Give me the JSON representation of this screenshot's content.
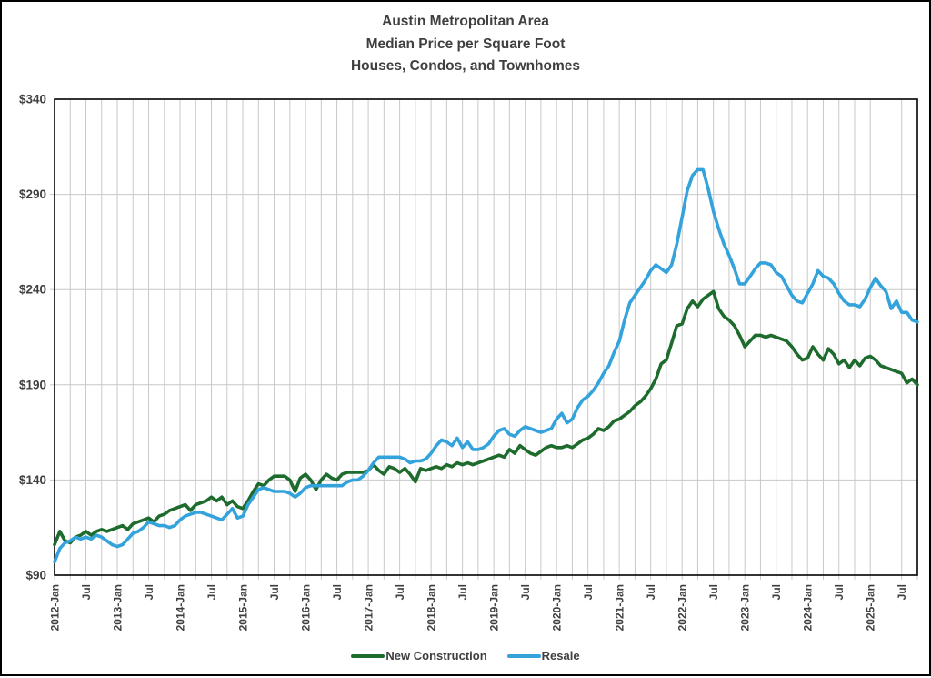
{
  "chart_data": {
    "type": "line",
    "title_lines": [
      "Austin Metropolitan Area",
      "Median Price per Square Foot",
      "Houses, Condos, and Townhomes"
    ],
    "x_start": "2012-Jan",
    "x_end": "2025-Oct",
    "x_interval": "monthly",
    "ylim": [
      90,
      340
    ],
    "y_tick_labels": [
      "$340",
      "$290",
      "$240",
      "$190",
      "$140",
      "$90"
    ],
    "y_gridline_values": [
      290,
      240,
      190,
      140
    ],
    "x_tick_labels": [
      "2012-Jan",
      "Jul",
      "2013-Jan",
      "Jul",
      "2014-Jan",
      "Jul",
      "2015-Jan",
      "Jul",
      "2016-Jan",
      "Jul",
      "2017-Jan",
      "Jul",
      "2018-Jan",
      "Jul",
      "2019-Jan",
      "Jul",
      "2020-Jan",
      "Jul",
      "2021-Jan",
      "Jul",
      "2022-Jan",
      "Jul",
      "2023-Jan",
      "Jul",
      "2024-Jan",
      "Jul",
      "2025-Jan",
      "Jul"
    ],
    "x_label_every_months": 6,
    "x_gridline_every_months": 3,
    "grid_on": true,
    "legend_position": "bottom-center",
    "colors": {
      "grid": "#c9c9c9",
      "frame": "#000000",
      "text": "#3f3f3f"
    },
    "series": [
      {
        "name": "New Construction",
        "color": "#1e6b2e",
        "values": [
          106,
          113,
          108,
          107,
          110,
          111,
          113,
          111,
          113,
          114,
          113,
          114,
          115,
          116,
          114,
          117,
          118,
          119,
          120,
          118,
          121,
          122,
          124,
          125,
          126,
          127,
          124,
          127,
          128,
          129,
          131,
          129,
          131,
          127,
          129,
          126,
          125,
          129,
          134,
          138,
          137,
          140,
          142,
          142,
          142,
          140,
          134,
          141,
          143,
          140,
          135,
          140,
          143,
          141,
          140,
          143,
          144,
          144,
          144,
          144,
          145,
          148,
          145,
          143,
          147,
          146,
          144,
          146,
          143,
          139,
          146,
          145,
          146,
          147,
          146,
          148,
          147,
          149,
          148,
          149,
          148,
          149,
          150,
          151,
          152,
          153,
          152,
          156,
          154,
          158,
          156,
          154,
          153,
          155,
          157,
          158,
          157,
          157,
          158,
          157,
          159,
          161,
          162,
          164,
          167,
          166,
          168,
          171,
          172,
          174,
          176,
          179,
          181,
          184,
          188,
          193,
          201,
          203,
          212,
          221,
          222,
          230,
          234,
          231,
          235,
          237,
          239,
          230,
          226,
          224,
          221,
          216,
          210,
          213,
          216,
          216,
          215,
          216,
          215,
          214,
          213,
          210,
          206,
          203,
          204,
          210,
          206,
          203,
          209,
          206,
          201,
          203,
          199,
          203,
          200,
          204,
          205,
          203,
          200,
          199,
          198,
          197,
          196,
          191,
          193,
          190
        ]
      },
      {
        "name": "Resale",
        "color": "#34a3dc",
        "values": [
          97,
          104,
          107,
          108,
          110,
          109,
          110,
          109,
          111,
          110,
          108,
          106,
          105,
          106,
          109,
          112,
          113,
          115,
          118,
          117,
          116,
          116,
          115,
          116,
          119,
          121,
          122,
          123,
          123,
          122,
          121,
          120,
          119,
          122,
          125,
          120,
          121,
          127,
          131,
          135,
          136,
          135,
          134,
          134,
          134,
          133,
          131,
          133,
          136,
          137,
          137,
          137,
          137,
          137,
          137,
          137,
          139,
          140,
          140,
          142,
          145,
          149,
          152,
          152,
          152,
          152,
          152,
          151,
          149,
          150,
          150,
          151,
          154,
          158,
          161,
          160,
          158,
          162,
          157,
          160,
          156,
          156,
          157,
          159,
          163,
          166,
          167,
          164,
          163,
          166,
          168,
          167,
          166,
          165,
          166,
          167,
          172,
          175,
          170,
          172,
          178,
          182,
          184,
          187,
          191,
          196,
          200,
          207,
          213,
          224,
          233,
          237,
          241,
          245,
          250,
          253,
          251,
          249,
          253,
          264,
          278,
          292,
          300,
          303,
          303,
          293,
          281,
          272,
          264,
          258,
          251,
          243,
          243,
          247,
          251,
          254,
          254,
          253,
          249,
          247,
          242,
          237,
          234,
          233,
          238,
          243,
          250,
          247,
          246,
          243,
          238,
          234,
          232,
          232,
          231,
          235,
          241,
          246,
          242,
          239,
          230,
          234,
          228,
          228,
          224,
          223
        ]
      }
    ]
  }
}
